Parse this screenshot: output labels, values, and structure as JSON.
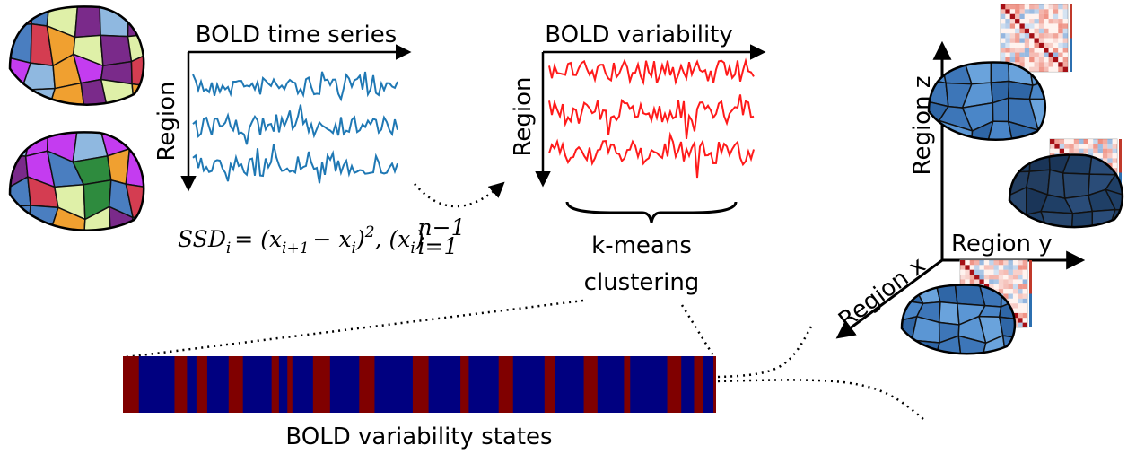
{
  "time_series": {
    "title": "BOLD time series",
    "y_label": "Region"
  },
  "variability": {
    "title": "BOLD variability",
    "y_label": "Region"
  },
  "formula": [
    "SSD",
    "i",
    "= (x",
    "i+1",
    "− x",
    "i",
    ")",
    "2",
    ", (x",
    "i",
    ")",
    "n−1",
    "i=1"
  ],
  "clustering": {
    "label": [
      "k-means",
      "clustering"
    ]
  },
  "states": {
    "label": "BOLD variability states"
  },
  "axes3d": {
    "z": "Region z",
    "y": "Region y",
    "x": "Region x"
  }
}
